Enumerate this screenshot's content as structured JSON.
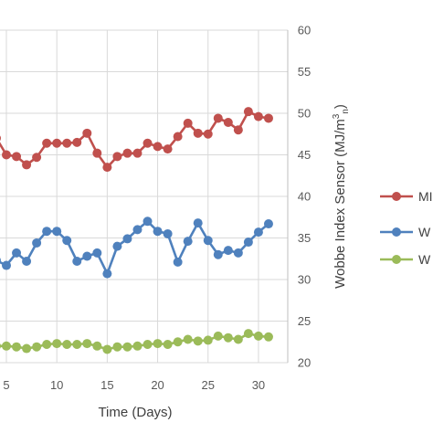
{
  "chart_data": {
    "type": "line",
    "xlabel": "Time (Days)",
    "ylabel": "Wobbe Index Sensor (MJ/m",
    "ylabel_sup": "3",
    "ylabel_sub": "n",
    "ylabel_close": ")",
    "x_ticks": [
      "5",
      "10",
      "15",
      "20",
      "25",
      "30"
    ],
    "y_ticks": [
      "20",
      "25",
      "30",
      "35",
      "40",
      "45",
      "50",
      "55",
      "60"
    ],
    "ylim": [
      20,
      60
    ],
    "xlim": [
      5,
      32
    ],
    "grid": true,
    "legend_position": "right",
    "series": [
      {
        "name": "MI",
        "color": "#c0504d",
        "x": [
          4,
          5,
          6,
          7,
          8,
          9,
          10,
          11,
          12,
          13,
          14,
          15,
          16,
          17,
          18,
          19,
          20,
          21,
          22,
          23,
          24,
          25,
          26,
          27,
          28,
          29,
          30,
          31
        ],
        "values": [
          47.0,
          45.0,
          44.8,
          43.8,
          44.7,
          46.4,
          46.4,
          46.4,
          46.5,
          47.6,
          45.2,
          43.5,
          44.8,
          45.2,
          45.2,
          46.4,
          46.0,
          45.7,
          47.2,
          48.8,
          47.6,
          47.5,
          49.4,
          48.9,
          48.0,
          50.2,
          49.6,
          49.4
        ]
      },
      {
        "name": "W",
        "color": "#4f81bd",
        "x": [
          4,
          5,
          6,
          7,
          8,
          9,
          10,
          11,
          12,
          13,
          14,
          15,
          16,
          17,
          18,
          19,
          20,
          21,
          22,
          23,
          24,
          25,
          26,
          27,
          28,
          29,
          30,
          31
        ],
        "values": [
          32.3,
          31.7,
          33.2,
          32.2,
          34.4,
          35.8,
          35.8,
          34.7,
          32.2,
          32.8,
          33.2,
          30.7,
          34.0,
          34.9,
          36.0,
          37.0,
          35.8,
          35.5,
          32.1,
          34.6,
          36.8,
          34.7,
          33.0,
          33.5,
          33.2,
          34.5,
          35.7,
          36.7
        ]
      },
      {
        "name": "W",
        "color": "#9bbb59",
        "x": [
          4,
          5,
          6,
          7,
          8,
          9,
          10,
          11,
          12,
          13,
          14,
          15,
          16,
          17,
          18,
          19,
          20,
          21,
          22,
          23,
          24,
          25,
          26,
          27,
          28,
          29,
          30,
          31
        ],
        "values": [
          22.0,
          22.0,
          21.9,
          21.7,
          21.9,
          22.2,
          22.3,
          22.2,
          22.2,
          22.3,
          22.0,
          21.6,
          21.9,
          21.9,
          22.0,
          22.2,
          22.3,
          22.2,
          22.5,
          22.8,
          22.6,
          22.7,
          23.2,
          23.0,
          22.8,
          23.5,
          23.2,
          23.1
        ]
      }
    ]
  }
}
